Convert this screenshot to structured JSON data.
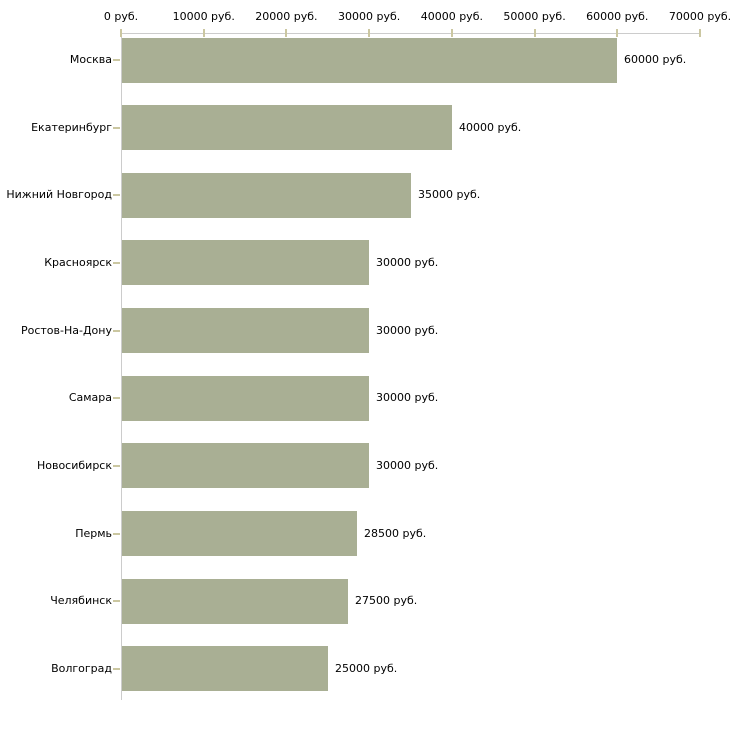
{
  "chart_data": {
    "type": "bar",
    "orientation": "horizontal",
    "title": "",
    "categories": [
      "Москва",
      "Екатеринбург",
      "Нижний Новгород",
      "Красноярск",
      "Ростов-На-Дону",
      "Самара",
      "Новосибирск",
      "Пермь",
      "Челябинск",
      "Волгоград"
    ],
    "values": [
      60000,
      40000,
      35000,
      30000,
      30000,
      30000,
      30000,
      28500,
      27500,
      25000
    ],
    "value_labels": [
      "60000 руб.",
      "40000 руб.",
      "35000 руб.",
      "30000 руб.",
      "30000 руб.",
      "30000 руб.",
      "30000 руб.",
      "28500 руб.",
      "27500 руб.",
      "25000 руб."
    ],
    "x_tick_values": [
      0,
      10000,
      20000,
      30000,
      40000,
      50000,
      60000,
      70000
    ],
    "x_tick_labels": [
      "0 руб.",
      "10000 руб.",
      "20000 руб.",
      "30000 руб.",
      "40000 руб.",
      "50000 руб.",
      "60000 руб.",
      "70000 руб."
    ],
    "xlim": [
      0,
      70000
    ],
    "grid": false,
    "legend": false,
    "axis_position": "top",
    "colors": {
      "bar": "#a9af94",
      "axis_line": "#cccccc",
      "tick_mark": "#cbc7a1",
      "text": "#000000",
      "background": "#ffffff"
    }
  }
}
